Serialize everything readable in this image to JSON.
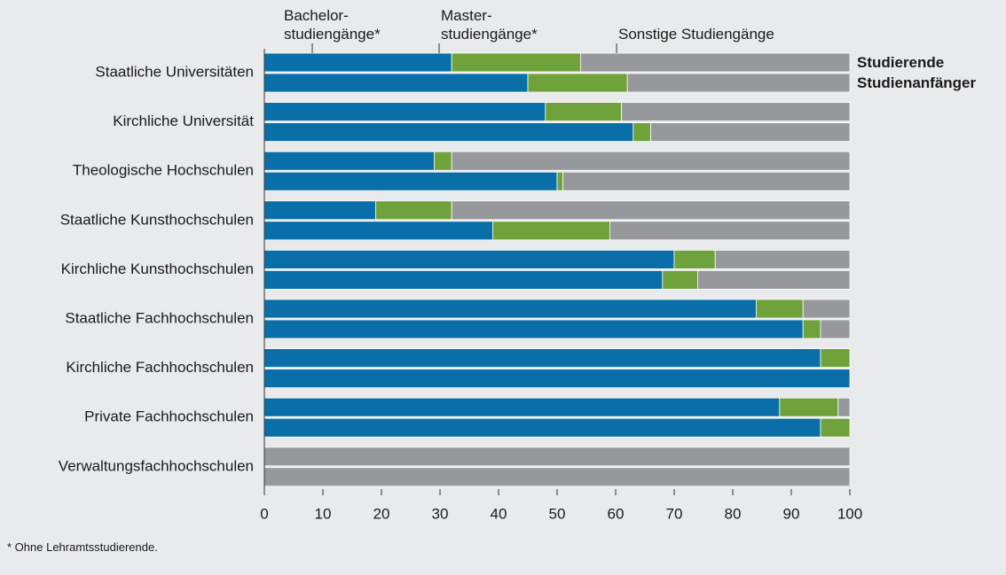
{
  "chart_data": {
    "type": "stacked-barh",
    "categories": [
      "Staatliche Universitäten",
      "Kirchliche Universität",
      "Theologische Hochschulen",
      "Staatliche Kunsthochschulen",
      "Kirchliche Kunsthochschulen",
      "Staatliche Fachhochschulen",
      "Kirchliche Fachhochschulen",
      "Private Fachhochschulen",
      "Verwaltungsfachhochschulen"
    ],
    "groups": [
      "Studierende",
      "Studienanfänger"
    ],
    "series": [
      {
        "name": "Bachelor-\nstudiengänge*",
        "color": "#0a6fa8",
        "values": [
          [
            32,
            45
          ],
          [
            48,
            63
          ],
          [
            29,
            50
          ],
          [
            19,
            39
          ],
          [
            70,
            68
          ],
          [
            84,
            92
          ],
          [
            95,
            100
          ],
          [
            88,
            95
          ],
          [
            0,
            0
          ]
        ]
      },
      {
        "name": "Master-\nstudiengänge*",
        "color": "#6fa23a",
        "values": [
          [
            22,
            17
          ],
          [
            13,
            3
          ],
          [
            3,
            1
          ],
          [
            13,
            20
          ],
          [
            7,
            6
          ],
          [
            8,
            3
          ],
          [
            5,
            0
          ],
          [
            10,
            5
          ],
          [
            0,
            0
          ]
        ]
      },
      {
        "name": "Sonstige Studiengänge",
        "color": "#97989b",
        "values": [
          [
            46,
            38
          ],
          [
            39,
            34
          ],
          [
            68,
            49
          ],
          [
            68,
            41
          ],
          [
            23,
            26
          ],
          [
            8,
            5
          ],
          [
            0,
            0
          ],
          [
            2,
            0
          ],
          [
            100,
            100
          ]
        ]
      }
    ],
    "xlim": [
      0,
      100
    ],
    "xticks": [
      0,
      10,
      20,
      30,
      40,
      50,
      60,
      70,
      80,
      90,
      100
    ],
    "footnote": "* Ohne Lehramtsstudierende."
  }
}
